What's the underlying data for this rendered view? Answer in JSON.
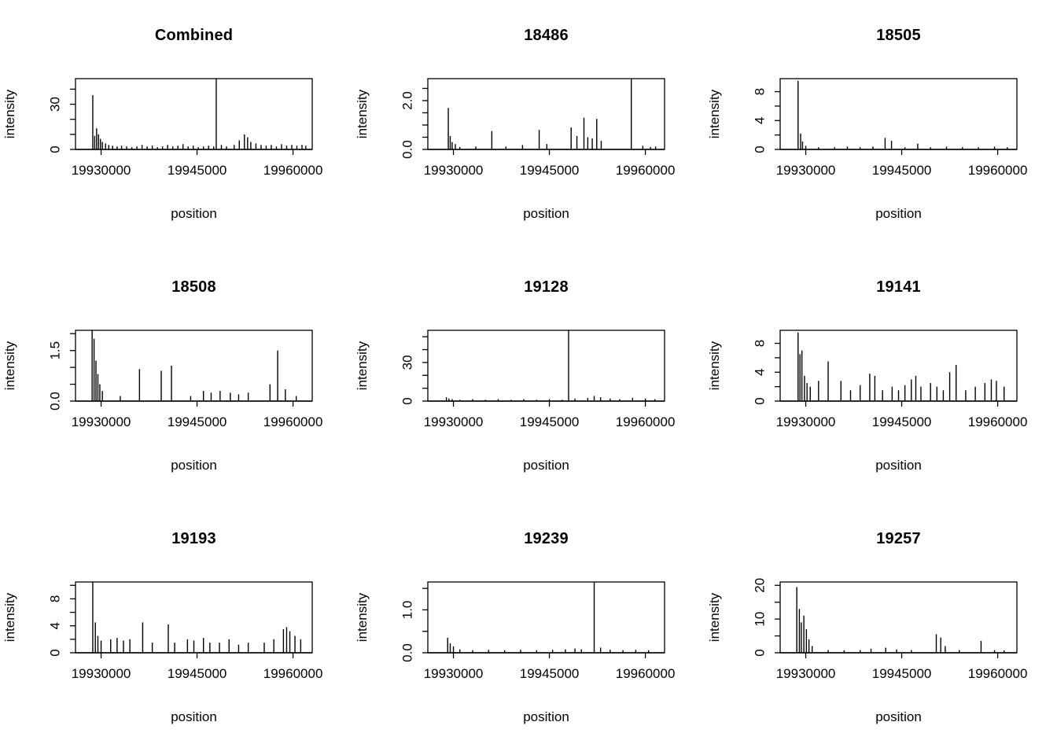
{
  "page": {
    "background": "#ffffff",
    "foreground": "#000000"
  },
  "chart_data": [
    {
      "type": "bar",
      "title": "Combined",
      "xlabel": "position",
      "ylabel": "intensity",
      "xlim": [
        19926000,
        19963000
      ],
      "ylim": [
        0,
        47
      ],
      "xticks": [
        19930000,
        19945000,
        19960000
      ],
      "xtick_labels": [
        "19930000",
        "19945000",
        "19960000"
      ],
      "yticks": [
        0,
        10,
        20,
        30,
        40
      ],
      "ytick_labels": [
        {
          "value": 0,
          "label": "0"
        },
        {
          "value": 30,
          "label": "30"
        }
      ],
      "spikes": [
        [
          19928700,
          36
        ],
        [
          19929000,
          9
        ],
        [
          19929300,
          14
        ],
        [
          19929600,
          10
        ],
        [
          19929900,
          7
        ],
        [
          19930200,
          5
        ],
        [
          19930700,
          4
        ],
        [
          19931200,
          3
        ],
        [
          19931800,
          2.5
        ],
        [
          19932500,
          2
        ],
        [
          19933200,
          2.5
        ],
        [
          19934000,
          2
        ],
        [
          19934800,
          1.5
        ],
        [
          19935600,
          2
        ],
        [
          19936400,
          3
        ],
        [
          19937200,
          2
        ],
        [
          19938000,
          2.5
        ],
        [
          19938800,
          1.5
        ],
        [
          19939600,
          2
        ],
        [
          19940400,
          3
        ],
        [
          19941200,
          2
        ],
        [
          19942000,
          2.5
        ],
        [
          19942800,
          3.5
        ],
        [
          19943600,
          2
        ],
        [
          19944400,
          2.5
        ],
        [
          19945200,
          1.5
        ],
        [
          19946000,
          2
        ],
        [
          19946800,
          2.5
        ],
        [
          19947600,
          2
        ],
        [
          19948000,
          47
        ],
        [
          19948800,
          3
        ],
        [
          19949600,
          2
        ],
        [
          19950800,
          3
        ],
        [
          19951600,
          6
        ],
        [
          19952400,
          10
        ],
        [
          19952900,
          8
        ],
        [
          19953400,
          5
        ],
        [
          19954200,
          4
        ],
        [
          19955000,
          3
        ],
        [
          19955800,
          2.5
        ],
        [
          19956600,
          3
        ],
        [
          19957400,
          2
        ],
        [
          19958200,
          3.5
        ],
        [
          19959000,
          2.5
        ],
        [
          19959800,
          3
        ],
        [
          19960600,
          2.5
        ],
        [
          19961400,
          3
        ],
        [
          19962000,
          2.5
        ]
      ]
    },
    {
      "type": "bar",
      "title": "18486",
      "xlabel": "position",
      "ylabel": "intensity",
      "xlim": [
        19926000,
        19963000
      ],
      "ylim": [
        0,
        2.9
      ],
      "xticks": [
        19930000,
        19945000,
        19960000
      ],
      "xtick_labels": [
        "19930000",
        "19945000",
        "19960000"
      ],
      "yticks": [
        0,
        0.5,
        1.0,
        1.5,
        2.0,
        2.5
      ],
      "ytick_labels": [
        {
          "value": 0,
          "label": "0.0"
        },
        {
          "value": 2.0,
          "label": "2.0"
        }
      ],
      "spikes": [
        [
          19929200,
          1.7
        ],
        [
          19929500,
          0.55
        ],
        [
          19929800,
          0.3
        ],
        [
          19930300,
          0.22
        ],
        [
          19931000,
          0.1
        ],
        [
          19933500,
          0.12
        ],
        [
          19936000,
          0.75
        ],
        [
          19938200,
          0.12
        ],
        [
          19940800,
          0.18
        ],
        [
          19943400,
          0.8
        ],
        [
          19944600,
          0.22
        ],
        [
          19948400,
          0.9
        ],
        [
          19949300,
          0.55
        ],
        [
          19950400,
          1.3
        ],
        [
          19951000,
          0.5
        ],
        [
          19951700,
          0.45
        ],
        [
          19952400,
          1.25
        ],
        [
          19953100,
          0.35
        ],
        [
          19957800,
          2.9
        ],
        [
          19959600,
          0.15
        ],
        [
          19960800,
          0.1
        ],
        [
          19961600,
          0.12
        ]
      ]
    },
    {
      "type": "bar",
      "title": "18505",
      "xlabel": "position",
      "ylabel": "intensity",
      "xlim": [
        19926000,
        19963000
      ],
      "ylim": [
        0,
        9.8
      ],
      "xticks": [
        19930000,
        19945000,
        19960000
      ],
      "xtick_labels": [
        "19930000",
        "19945000",
        "19960000"
      ],
      "yticks": [
        0,
        2,
        4,
        6,
        8
      ],
      "ytick_labels": [
        {
          "value": 0,
          "label": "0"
        },
        {
          "value": 4,
          "label": "4"
        },
        {
          "value": 8,
          "label": "8"
        }
      ],
      "spikes": [
        [
          19928800,
          9.5
        ],
        [
          19929200,
          2.2
        ],
        [
          19929500,
          1.1
        ],
        [
          19930000,
          0.5
        ],
        [
          19932000,
          0.3
        ],
        [
          19934500,
          0.3
        ],
        [
          19936500,
          0.4
        ],
        [
          19938500,
          0.3
        ],
        [
          19940500,
          0.4
        ],
        [
          19942400,
          1.6
        ],
        [
          19943400,
          1.2
        ],
        [
          19945500,
          0.3
        ],
        [
          19947500,
          0.8
        ],
        [
          19949500,
          0.3
        ],
        [
          19952000,
          0.4
        ],
        [
          19954500,
          0.3
        ],
        [
          19957000,
          0.3
        ],
        [
          19959500,
          0.4
        ],
        [
          19961500,
          0.3
        ]
      ]
    },
    {
      "type": "bar",
      "title": "18508",
      "xlabel": "position",
      "ylabel": "intensity",
      "xlim": [
        19926000,
        19963000
      ],
      "ylim": [
        0,
        2.1
      ],
      "xticks": [
        19930000,
        19945000,
        19960000
      ],
      "xtick_labels": [
        "19930000",
        "19945000",
        "19960000"
      ],
      "yticks": [
        0,
        0.5,
        1.0,
        1.5,
        2.0
      ],
      "ytick_labels": [
        {
          "value": 0,
          "label": "0.0"
        },
        {
          "value": 1.5,
          "label": "1.5"
        }
      ],
      "spikes": [
        [
          19928600,
          2.1
        ],
        [
          19928900,
          1.85
        ],
        [
          19929200,
          1.2
        ],
        [
          19929500,
          0.8
        ],
        [
          19929800,
          0.5
        ],
        [
          19930200,
          0.3
        ],
        [
          19933000,
          0.15
        ],
        [
          19936000,
          0.95
        ],
        [
          19939400,
          0.9
        ],
        [
          19941000,
          1.05
        ],
        [
          19944000,
          0.15
        ],
        [
          19946000,
          0.3
        ],
        [
          19947200,
          0.25
        ],
        [
          19948600,
          0.3
        ],
        [
          19950200,
          0.25
        ],
        [
          19951500,
          0.2
        ],
        [
          19953000,
          0.25
        ],
        [
          19956400,
          0.5
        ],
        [
          19957600,
          1.5
        ],
        [
          19958800,
          0.35
        ],
        [
          19960500,
          0.15
        ]
      ]
    },
    {
      "type": "bar",
      "title": "19128",
      "xlabel": "position",
      "ylabel": "intensity",
      "xlim": [
        19926000,
        19963000
      ],
      "ylim": [
        0,
        55
      ],
      "xticks": [
        19930000,
        19945000,
        19960000
      ],
      "xtick_labels": [
        "19930000",
        "19945000",
        "19960000"
      ],
      "yticks": [
        0,
        10,
        20,
        30,
        40,
        50
      ],
      "ytick_labels": [
        {
          "value": 0,
          "label": "0"
        },
        {
          "value": 30,
          "label": "30"
        }
      ],
      "spikes": [
        [
          19928900,
          3
        ],
        [
          19929300,
          2
        ],
        [
          19929800,
          1.5
        ],
        [
          19931000,
          1
        ],
        [
          19933000,
          1.5
        ],
        [
          19935000,
          1
        ],
        [
          19937000,
          1.5
        ],
        [
          19939000,
          1
        ],
        [
          19941000,
          1.5
        ],
        [
          19943000,
          1
        ],
        [
          19945000,
          1.5
        ],
        [
          19947000,
          1
        ],
        [
          19948000,
          55
        ],
        [
          19949000,
          2
        ],
        [
          19951000,
          2.5
        ],
        [
          19952000,
          4
        ],
        [
          19953000,
          3
        ],
        [
          19954500,
          2
        ],
        [
          19956000,
          1.5
        ],
        [
          19958000,
          2.5
        ],
        [
          19960000,
          2
        ],
        [
          19961500,
          1.5
        ]
      ]
    },
    {
      "type": "bar",
      "title": "19141",
      "xlabel": "position",
      "ylabel": "intensity",
      "xlim": [
        19926000,
        19963000
      ],
      "ylim": [
        0,
        9.8
      ],
      "xticks": [
        19930000,
        19945000,
        19960000
      ],
      "xtick_labels": [
        "19930000",
        "19945000",
        "19960000"
      ],
      "yticks": [
        0,
        2,
        4,
        6,
        8
      ],
      "ytick_labels": [
        {
          "value": 0,
          "label": "0"
        },
        {
          "value": 4,
          "label": "4"
        },
        {
          "value": 8,
          "label": "8"
        }
      ],
      "spikes": [
        [
          19928800,
          9.5
        ],
        [
          19929100,
          6.5
        ],
        [
          19929400,
          7
        ],
        [
          19929800,
          3.5
        ],
        [
          19930200,
          2.5
        ],
        [
          19930700,
          2
        ],
        [
          19932000,
          2.8
        ],
        [
          19933500,
          5.5
        ],
        [
          19935500,
          2.8
        ],
        [
          19937000,
          1.5
        ],
        [
          19938500,
          2.2
        ],
        [
          19940000,
          3.8
        ],
        [
          19940800,
          3.5
        ],
        [
          19942000,
          1.5
        ],
        [
          19943500,
          2
        ],
        [
          19944500,
          1.5
        ],
        [
          19945500,
          2.2
        ],
        [
          19946500,
          3
        ],
        [
          19947200,
          3.5
        ],
        [
          19948000,
          2
        ],
        [
          19949500,
          2.5
        ],
        [
          19950500,
          2
        ],
        [
          19951500,
          1.5
        ],
        [
          19952500,
          4
        ],
        [
          19953500,
          5
        ],
        [
          19955000,
          1.5
        ],
        [
          19956500,
          2
        ],
        [
          19958000,
          2.5
        ],
        [
          19959000,
          3
        ],
        [
          19959800,
          2.8
        ],
        [
          19961000,
          2
        ]
      ]
    },
    {
      "type": "bar",
      "title": "19193",
      "xlabel": "position",
      "ylabel": "intensity",
      "xlim": [
        19926000,
        19963000
      ],
      "ylim": [
        0,
        10.5
      ],
      "xticks": [
        19930000,
        19945000,
        19960000
      ],
      "xtick_labels": [
        "19930000",
        "19945000",
        "19960000"
      ],
      "yticks": [
        0,
        2,
        4,
        6,
        8,
        10
      ],
      "ytick_labels": [
        {
          "value": 0,
          "label": "0"
        },
        {
          "value": 4,
          "label": "4"
        },
        {
          "value": 8,
          "label": "8"
        }
      ],
      "spikes": [
        [
          19928700,
          10.5
        ],
        [
          19929100,
          4.5
        ],
        [
          19929500,
          2.5
        ],
        [
          19930000,
          1.8
        ],
        [
          19931500,
          2
        ],
        [
          19932500,
          2.2
        ],
        [
          19933500,
          1.8
        ],
        [
          19934500,
          2
        ],
        [
          19936500,
          4.5
        ],
        [
          19938000,
          1.5
        ],
        [
          19940500,
          4.2
        ],
        [
          19941500,
          1.5
        ],
        [
          19943500,
          2
        ],
        [
          19944500,
          1.8
        ],
        [
          19946000,
          2.2
        ],
        [
          19947000,
          1.5
        ],
        [
          19948500,
          1.5
        ],
        [
          19950000,
          2
        ],
        [
          19951500,
          1.2
        ],
        [
          19953000,
          1.5
        ],
        [
          19955500,
          1.5
        ],
        [
          19957000,
          2
        ],
        [
          19958500,
          3.5
        ],
        [
          19959000,
          3.8
        ],
        [
          19959500,
          3.2
        ],
        [
          19960300,
          2.5
        ],
        [
          19961200,
          2
        ]
      ]
    },
    {
      "type": "bar",
      "title": "19239",
      "xlabel": "position",
      "ylabel": "intensity",
      "xlim": [
        19926000,
        19963000
      ],
      "ylim": [
        0,
        1.65
      ],
      "xticks": [
        19930000,
        19945000,
        19960000
      ],
      "xtick_labels": [
        "19930000",
        "19945000",
        "19960000"
      ],
      "yticks": [
        0,
        0.5,
        1.0,
        1.5
      ],
      "ytick_labels": [
        {
          "value": 0,
          "label": "0.0"
        },
        {
          "value": 1.0,
          "label": "1.0"
        }
      ],
      "spikes": [
        [
          19929100,
          0.35
        ],
        [
          19929500,
          0.22
        ],
        [
          19930000,
          0.15
        ],
        [
          19931000,
          0.08
        ],
        [
          19933000,
          0.06
        ],
        [
          19935500,
          0.07
        ],
        [
          19938000,
          0.06
        ],
        [
          19940500,
          0.07
        ],
        [
          19943000,
          0.06
        ],
        [
          19945500,
          0.07
        ],
        [
          19947500,
          0.08
        ],
        [
          19949000,
          0.1
        ],
        [
          19950000,
          0.08
        ],
        [
          19952000,
          1.65
        ],
        [
          19953000,
          0.12
        ],
        [
          19954500,
          0.07
        ],
        [
          19956500,
          0.06
        ],
        [
          19958500,
          0.07
        ],
        [
          19960500,
          0.06
        ]
      ]
    },
    {
      "type": "bar",
      "title": "19257",
      "xlabel": "position",
      "ylabel": "intensity",
      "xlim": [
        19926000,
        19963000
      ],
      "ylim": [
        0,
        21
      ],
      "xticks": [
        19930000,
        19945000,
        19960000
      ],
      "xtick_labels": [
        "19930000",
        "19945000",
        "19960000"
      ],
      "yticks": [
        0,
        5,
        10,
        15,
        20
      ],
      "ytick_labels": [
        {
          "value": 0,
          "label": "0"
        },
        {
          "value": 10,
          "label": "10"
        },
        {
          "value": 20,
          "label": "20"
        }
      ],
      "spikes": [
        [
          19928600,
          19.5
        ],
        [
          19929000,
          13
        ],
        [
          19929300,
          9
        ],
        [
          19929700,
          11
        ],
        [
          19930100,
          7
        ],
        [
          19930500,
          4
        ],
        [
          19931000,
          2
        ],
        [
          19933500,
          0.8
        ],
        [
          19936000,
          0.7
        ],
        [
          19938500,
          0.8
        ],
        [
          19940200,
          1.2
        ],
        [
          19942500,
          1.5
        ],
        [
          19944200,
          1
        ],
        [
          19946500,
          0.8
        ],
        [
          19950400,
          5.5
        ],
        [
          19951100,
          4.5
        ],
        [
          19951800,
          2
        ],
        [
          19954000,
          0.8
        ],
        [
          19957400,
          3.5
        ],
        [
          19959500,
          0.8
        ],
        [
          19961000,
          0.7
        ]
      ]
    }
  ]
}
